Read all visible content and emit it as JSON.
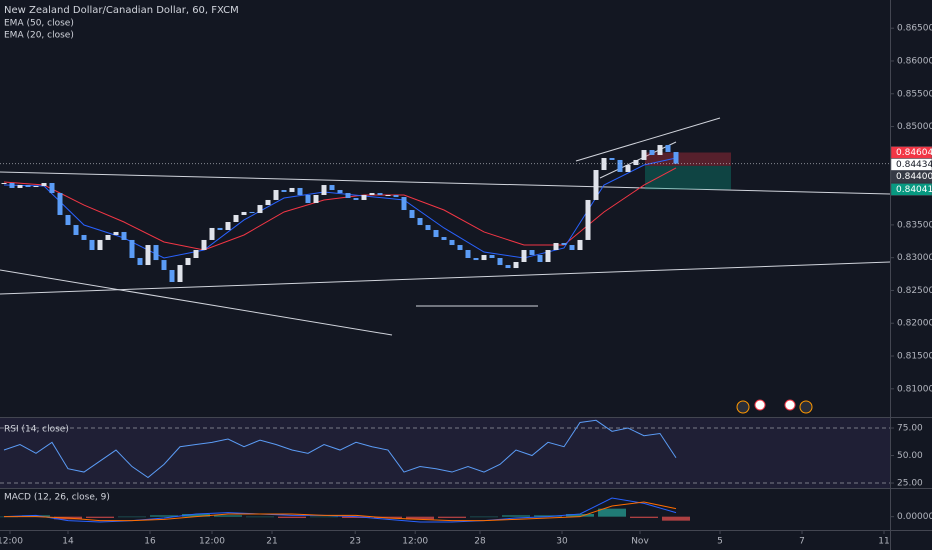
{
  "chart_data": [
    {
      "type": "candlestick",
      "title": "New Zealand Dollar/Canadian Dollar, 60, FXCM",
      "up_color": "#e0e3eb",
      "down_color": "#5b9cf6",
      "values": [
        0.84139,
        0.84063,
        0.84108,
        0.84078,
        0.84093,
        0.84139,
        0.83986,
        0.83651,
        0.83498,
        0.83346,
        0.8327,
        0.83117,
        0.8327,
        0.83346,
        0.83392,
        0.8327,
        0.82995,
        0.82888,
        0.83193,
        0.82964,
        0.82812,
        0.82629,
        0.82888,
        0.82995,
        0.83117,
        0.8327,
        0.83453,
        0.83422,
        0.83544,
        0.83651,
        0.83697,
        0.83681,
        0.83803,
        0.8388,
        0.84032,
        0.84002,
        0.84063,
        0.83956,
        0.83834,
        0.83956,
        0.84108,
        0.84032,
        0.83986,
        0.8391,
        0.8388,
        0.83956,
        0.83986,
        0.83956,
        0.83956,
        0.83925,
        0.83727,
        0.83605,
        0.83498,
        0.83422,
        0.83315,
        0.8327,
        0.83193,
        0.83117,
        0.82995,
        0.82964,
        0.83041,
        0.82995,
        0.82888,
        0.82842,
        0.82934,
        0.83117,
        0.83041,
        0.82934,
        0.83117,
        0.83224,
        0.83193,
        0.83117,
        0.8327,
        0.8388,
        0.84337,
        0.8452,
        0.8449,
        0.84307,
        0.84413,
        0.8449,
        0.84642,
        0.84566,
        0.84718,
        0.84612,
        0.84434
      ],
      "overlays": [
        {
          "name": "EMA (50, close)",
          "color": "#f23645",
          "x": [
            0,
            5,
            10,
            15,
            20,
            25,
            30,
            35,
            40,
            45,
            50,
            55,
            60,
            65,
            70,
            75,
            80,
            84
          ],
          "values": [
            0.84154,
            0.84108,
            0.83803,
            0.83544,
            0.83239,
            0.83117,
            0.83346,
            0.83697,
            0.8388,
            0.83956,
            0.83956,
            0.83727,
            0.83392,
            0.83193,
            0.83193,
            0.83697,
            0.84108,
            0.84368
          ]
        },
        {
          "name": "EMA (20, close)",
          "color": "#2962ff",
          "x": [
            0,
            5,
            10,
            15,
            20,
            25,
            30,
            35,
            40,
            45,
            50,
            55,
            60,
            65,
            70,
            75,
            80,
            84
          ],
          "values": [
            0.84108,
            0.84093,
            0.83498,
            0.833,
            0.82995,
            0.83117,
            0.83575,
            0.8391,
            0.84002,
            0.83941,
            0.8388,
            0.83453,
            0.83086,
            0.82995,
            0.83148,
            0.84108,
            0.84413,
            0.8452
          ]
        }
      ],
      "xlim": [
        -0.5,
        110.75
      ],
      "xticks": [
        {
          "value": 0.75,
          "label": "12:00"
        },
        {
          "value": 8,
          "label": "14"
        },
        {
          "value": 18.25,
          "label": "16"
        },
        {
          "value": 26,
          "label": "12:00"
        },
        {
          "value": 33.5,
          "label": "21"
        },
        {
          "value": 43.9,
          "label": "23"
        },
        {
          "value": 51.4,
          "label": "12:00"
        },
        {
          "value": 59.5,
          "label": "28"
        },
        {
          "value": 69.75,
          "label": "30"
        },
        {
          "value": 79.5,
          "label": "Nov"
        },
        {
          "value": 89.5,
          "label": "5"
        },
        {
          "value": 99.75,
          "label": "7"
        },
        {
          "value": 110,
          "label": "11"
        }
      ],
      "ylim": [
        0.8057,
        0.8693
      ],
      "yticks": [
        {
          "value": 0.81,
          "label": "0.81000"
        },
        {
          "value": 0.815,
          "label": "0.81500"
        },
        {
          "value": 0.82,
          "label": "0.82000"
        },
        {
          "value": 0.825,
          "label": "0.82500"
        },
        {
          "value": 0.83,
          "label": "0.83000"
        },
        {
          "value": 0.835,
          "label": "0.83500"
        },
        {
          "value": 0.84,
          "label": "0.84000"
        },
        {
          "value": 0.845,
          "label": "0.84500"
        },
        {
          "value": 0.85,
          "label": "0.85000"
        },
        {
          "value": 0.855,
          "label": "0.85500"
        },
        {
          "value": 0.86,
          "label": "0.86000"
        },
        {
          "value": 0.865,
          "label": "0.86500"
        }
      ],
      "price_labels": [
        {
          "value": 0.84604,
          "label": "0.84604",
          "color": "#f23645"
        },
        {
          "value": 0.84434,
          "label": "0.84434",
          "color": "#ffffff"
        },
        {
          "value": 0.844,
          "label": "0.84400",
          "color": "#363a45"
        },
        {
          "value": 0.84041,
          "label": "0.84041",
          "color": "#089981"
        }
      ]
    },
    {
      "type": "line",
      "title": "RSI (14, close)",
      "color": "#5b9cf6",
      "x": [
        0,
        2,
        4,
        6,
        8,
        10,
        12,
        14,
        16,
        18,
        20,
        22,
        24,
        26,
        28,
        30,
        32,
        34,
        36,
        38,
        40,
        42,
        44,
        46,
        48,
        50,
        52,
        54,
        56,
        58,
        60,
        62,
        64,
        66,
        68,
        70,
        72,
        74,
        76,
        78,
        80,
        82,
        84
      ],
      "values": [
        55,
        60,
        52,
        62,
        38,
        35,
        45,
        55,
        40,
        30,
        42,
        58,
        60,
        62,
        65,
        58,
        64,
        60,
        55,
        52,
        60,
        55,
        62,
        58,
        55,
        35,
        40,
        38,
        35,
        40,
        35,
        42,
        55,
        50,
        62,
        58,
        80,
        82,
        72,
        75,
        68,
        70,
        48
      ],
      "ylim": [
        20.5,
        84.1
      ],
      "yticks": [
        {
          "value": 25,
          "label": "25.00"
        },
        {
          "value": 50,
          "label": "50.00"
        },
        {
          "value": 75,
          "label": "75.00"
        }
      ],
      "bands": [
        75,
        25
      ]
    },
    {
      "type": "macd",
      "title": "MACD (12, 26, close, 9)",
      "x": [
        0,
        4,
        8,
        12,
        16,
        20,
        24,
        28,
        32,
        36,
        40,
        44,
        48,
        52,
        56,
        60,
        64,
        68,
        72,
        76,
        80,
        84
      ],
      "series": [
        {
          "color": "#2962ff",
          "values": [
            0,
            0.0001,
            -0.0003,
            -0.0004,
            -0.0003,
            -0.0001,
            0.0002,
            0.0003,
            0.0002,
            0.0001,
            0.0001,
            0,
            -0.0002,
            -0.0004,
            -0.0004,
            -0.0003,
            -0.0001,
            0,
            0.0002,
            0.0014,
            0.001,
            0.0003
          ]
        },
        {
          "color": "#ff6d00",
          "values": [
            0,
            0,
            -0.0001,
            -0.0003,
            -0.0003,
            -0.0002,
            0,
            0.0002,
            0.0002,
            0.0002,
            0.0001,
            0.0001,
            -0.0001,
            -0.0002,
            -0.0003,
            -0.0003,
            -0.0002,
            -0.0001,
            0,
            0.0008,
            0.0011,
            0.0006
          ]
        }
      ],
      "histogram": {
        "up_color": "#26a69a",
        "down_color": "#ef5350",
        "values": [
          0,
          0.0001,
          -0.0002,
          -0.0001,
          0,
          0.0001,
          0.0002,
          0.0001,
          0,
          -0.0001,
          0,
          -0.0001,
          -0.0001,
          -0.0002,
          -0.0001,
          0,
          0.0001,
          0.0001,
          0.0002,
          0.0006,
          -0.0001,
          -0.0003
        ]
      },
      "ylim": [
        -0.001,
        0.002
      ],
      "yticks": [
        {
          "value": 0,
          "label": "0.00000"
        }
      ]
    }
  ]
}
